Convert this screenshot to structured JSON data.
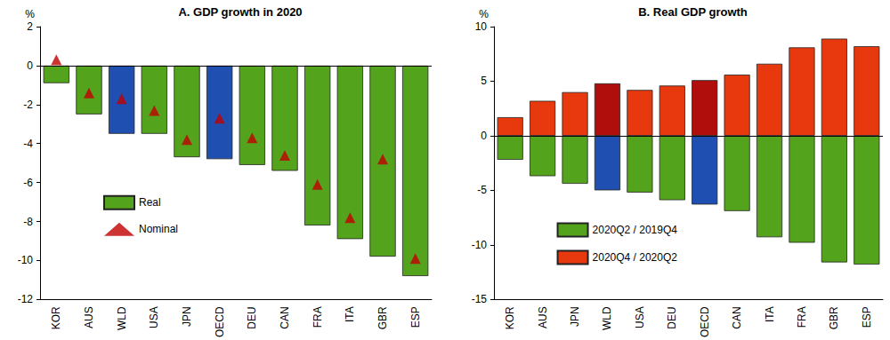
{
  "chart_data": [
    {
      "type": "bar",
      "title": "A. GDP growth in 2020",
      "ylabel": "%",
      "categories": [
        "KOR",
        "AUS",
        "WLD",
        "USA",
        "JPN",
        "OECD",
        "DEU",
        "CAN",
        "FRA",
        "ITA",
        "GBR",
        "ESP"
      ],
      "series": [
        {
          "name": "Real",
          "type": "bar",
          "color": "#54a31d",
          "colors": [
            "#54a31d",
            "#54a31d",
            "#1f4fb0",
            "#54a31d",
            "#54a31d",
            "#1f4fb0",
            "#54a31d",
            "#54a31d",
            "#54a31d",
            "#54a31d",
            "#54a31d",
            "#54a31d"
          ],
          "values": [
            -0.9,
            -2.5,
            -3.5,
            -3.5,
            -4.7,
            -4.8,
            -5.1,
            -5.4,
            -8.2,
            -8.9,
            -9.8,
            -10.8
          ]
        },
        {
          "name": "Nominal",
          "type": "scatter",
          "marker": "triangle",
          "color": "#c00000",
          "values": [
            0.3,
            -1.4,
            -1.7,
            -2.3,
            -3.8,
            -2.7,
            -3.7,
            -4.6,
            -6.1,
            -7.8,
            -4.8,
            -9.9
          ]
        }
      ],
      "ylim": [
        -12,
        2
      ],
      "yticks": [
        -12,
        -10,
        -8,
        -6,
        -4,
        -2,
        0,
        2
      ],
      "grid": false,
      "legend": "center left"
    },
    {
      "type": "bar",
      "title": "B. Real GDP growth",
      "ylabel": "%",
      "categories": [
        "KOR",
        "AUS",
        "JPN",
        "WLD",
        "USA",
        "DEU",
        "OECD",
        "CAN",
        "ITA",
        "FRA",
        "GBR",
        "ESP"
      ],
      "series": [
        {
          "name": "2020Q2 / 2019Q4",
          "color": "#54a31d",
          "colors": [
            "#54a31d",
            "#54a31d",
            "#54a31d",
            "#1f4fb0",
            "#54a31d",
            "#54a31d",
            "#1f4fb0",
            "#54a31d",
            "#54a31d",
            "#54a31d",
            "#54a31d",
            "#54a31d"
          ],
          "values": [
            -2.2,
            -3.7,
            -4.4,
            -5.0,
            -5.2,
            -5.9,
            -6.3,
            -6.9,
            -9.3,
            -9.8,
            -11.6,
            -11.8
          ]
        },
        {
          "name": "2020Q4 / 2020Q2",
          "color": "#e8390e",
          "colors": [
            "#e8390e",
            "#e8390e",
            "#e8390e",
            "#b00d0d",
            "#e8390e",
            "#e8390e",
            "#b00d0d",
            "#e8390e",
            "#e8390e",
            "#e8390e",
            "#e8390e",
            "#e8390e"
          ],
          "values": [
            1.7,
            3.2,
            4.0,
            4.8,
            4.2,
            4.6,
            5.1,
            5.6,
            6.6,
            8.1,
            8.9,
            8.2
          ]
        }
      ],
      "ylim": [
        -15,
        10
      ],
      "yticks": [
        -15,
        -10,
        -5,
        0,
        5,
        10
      ],
      "grid": false,
      "stacked": true,
      "legend": "lower left"
    }
  ]
}
